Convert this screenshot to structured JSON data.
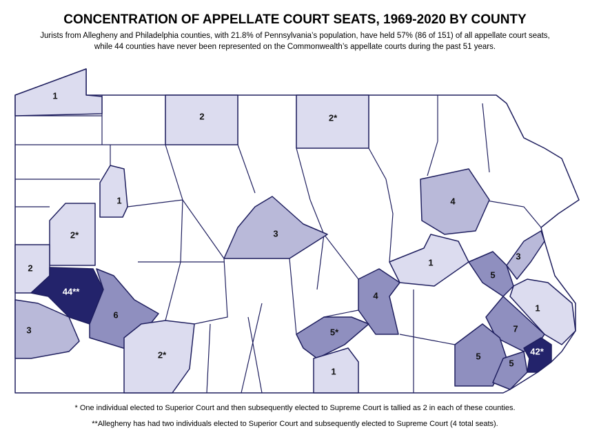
{
  "header": {
    "title": "CONCENTRATION OF APPELLATE COURT SEATS, 1969-2020 BY COUNTY",
    "subtitle": [
      "Jurists from Allegheny and Philadelphia counties, with 21.8% of Pennsylvania’s population, have held 57% (86 of 151) of all appellate court seats,",
      "while 44 counties have never been represented on the Commonwealth’s appellate courts during the past 51 years."
    ]
  },
  "map": {
    "counties": [
      {
        "label": "1"
      },
      {
        "label": "2"
      },
      {
        "label": "2*"
      },
      {
        "label": "1"
      },
      {
        "label": "4"
      },
      {
        "label": "2*"
      },
      {
        "label": "3"
      },
      {
        "label": "2"
      },
      {
        "label": "44**"
      },
      {
        "label": "6"
      },
      {
        "label": "1"
      },
      {
        "label": "5"
      },
      {
        "label": "3"
      },
      {
        "label": "4"
      },
      {
        "label": "1"
      },
      {
        "label": "3"
      },
      {
        "label": "7"
      },
      {
        "label": "5*"
      },
      {
        "label": "2*"
      },
      {
        "label": "5"
      },
      {
        "label": "42*"
      },
      {
        "label": "5"
      },
      {
        "label": "1"
      }
    ]
  },
  "footnotes": [
    "* One individual elected to Superior Court and then subsequently elected to Supreme Court is tallied as 2 in each of these counties.",
    "**Allegheny has had two individuals elected to Superior Court and subsequently elected to Supreme Court (4 total seats)."
  ]
}
